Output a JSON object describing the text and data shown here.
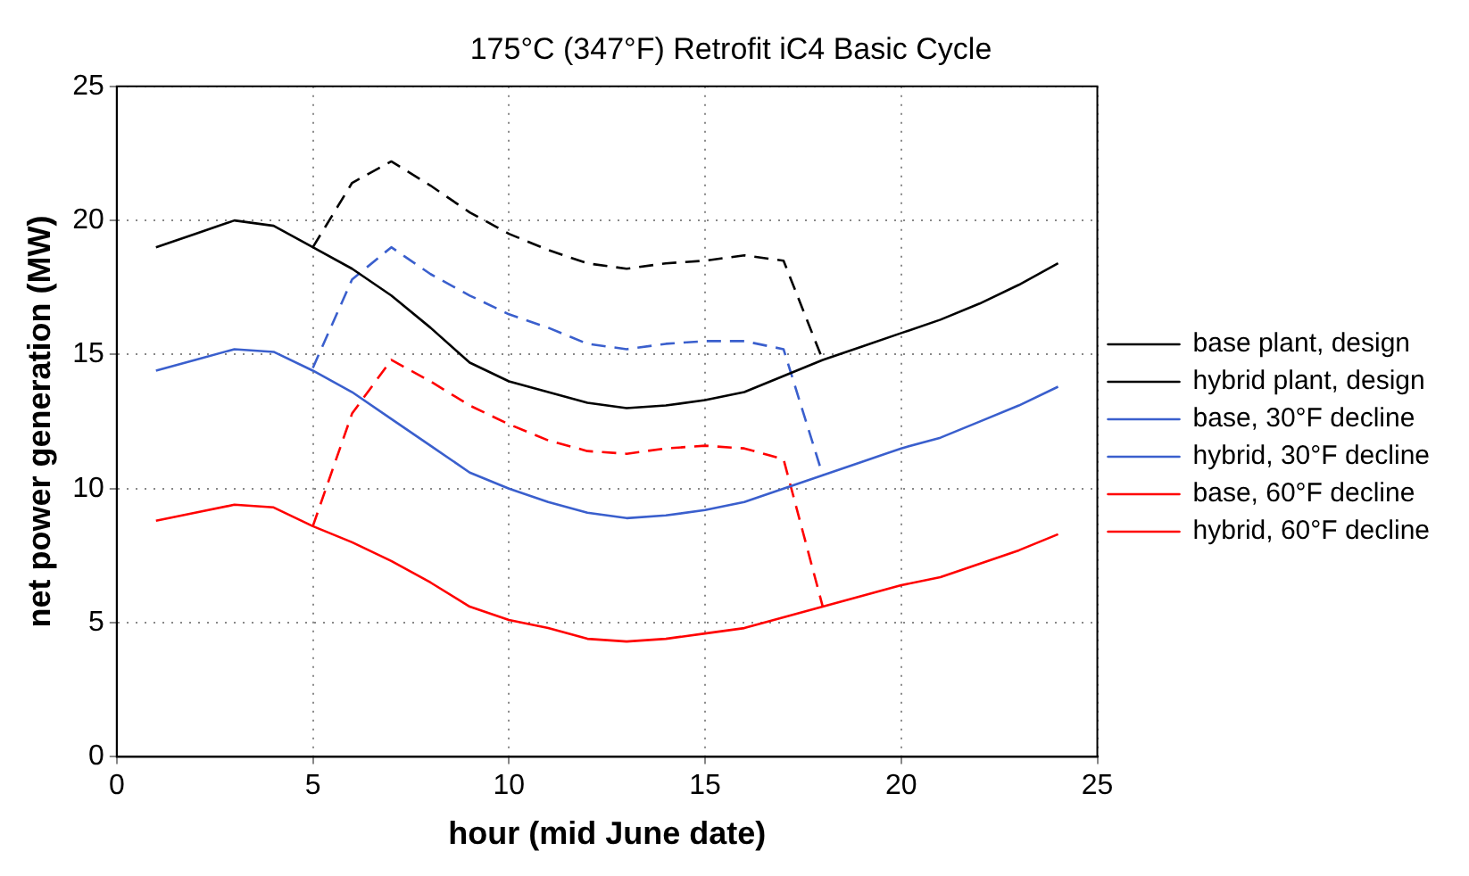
{
  "chart_data": {
    "type": "line",
    "title": "175°C (347°F) Retrofit iC4 Basic Cycle",
    "xlabel": "hour (mid June date)",
    "ylabel": "net power generation (MW)",
    "xlim": [
      0,
      25
    ],
    "xticks": [
      0,
      5,
      10,
      15,
      20,
      25
    ],
    "ylim": [
      0,
      25
    ],
    "yticks": [
      0,
      5,
      10,
      15,
      20,
      25
    ],
    "grid": true,
    "legend": "right",
    "marker": "none",
    "series": [
      {
        "name": "base plant, design",
        "color": "#000000",
        "line_style": "solid",
        "x": [
          1,
          2,
          3,
          4,
          5,
          6,
          7,
          8,
          9,
          10,
          11,
          12,
          13,
          14,
          15,
          16,
          17,
          18,
          19,
          20,
          21,
          22,
          23,
          24
        ],
        "values": [
          19.0,
          19.5,
          20.0,
          19.8,
          19.0,
          18.2,
          17.2,
          16.0,
          14.7,
          14.0,
          13.6,
          13.2,
          13.0,
          13.1,
          13.3,
          13.6,
          14.2,
          14.8,
          15.3,
          15.8,
          16.3,
          16.9,
          17.6,
          18.4
        ]
      },
      {
        "name": "hybrid plant, design",
        "color": "#000000",
        "line_style": "dashed",
        "x": [
          5,
          6,
          7,
          8,
          9,
          10,
          11,
          12,
          13,
          14,
          15,
          16,
          17,
          18
        ],
        "values": [
          19.0,
          21.4,
          22.2,
          21.3,
          20.3,
          19.5,
          18.9,
          18.4,
          18.2,
          18.4,
          18.5,
          18.7,
          18.5,
          14.8
        ]
      },
      {
        "name": "base, 30°F decline",
        "color": "#3a5fcd",
        "line_style": "solid",
        "x": [
          1,
          2,
          3,
          4,
          5,
          6,
          7,
          8,
          9,
          10,
          11,
          12,
          13,
          14,
          15,
          16,
          17,
          18,
          19,
          20,
          21,
          22,
          23,
          24
        ],
        "values": [
          14.4,
          14.8,
          15.2,
          15.1,
          14.4,
          13.6,
          12.6,
          11.6,
          10.6,
          10.0,
          9.5,
          9.1,
          8.9,
          9.0,
          9.2,
          9.5,
          10.0,
          10.5,
          11.0,
          11.5,
          11.9,
          12.5,
          13.1,
          13.8
        ]
      },
      {
        "name": "hybrid, 30°F decline",
        "color": "#3a5fcd",
        "line_style": "dashed",
        "x": [
          5,
          6,
          7,
          8,
          9,
          10,
          11,
          12,
          13,
          14,
          15,
          16,
          17,
          18
        ],
        "values": [
          14.5,
          17.8,
          19.0,
          18.0,
          17.2,
          16.5,
          16.0,
          15.4,
          15.2,
          15.4,
          15.5,
          15.5,
          15.2,
          10.5
        ]
      },
      {
        "name": "base, 60°F decline",
        "color": "#ff0000",
        "line_style": "solid",
        "x": [
          1,
          2,
          3,
          4,
          5,
          6,
          7,
          8,
          9,
          10,
          11,
          12,
          13,
          14,
          15,
          16,
          17,
          18,
          19,
          20,
          21,
          22,
          23,
          24
        ],
        "values": [
          8.8,
          9.1,
          9.4,
          9.3,
          8.6,
          8.0,
          7.3,
          6.5,
          5.6,
          5.1,
          4.8,
          4.4,
          4.3,
          4.4,
          4.6,
          4.8,
          5.2,
          5.6,
          6.0,
          6.4,
          6.7,
          7.2,
          7.7,
          8.3
        ]
      },
      {
        "name": "hybrid, 60°F decline",
        "color": "#ff0000",
        "line_style": "dashed",
        "x": [
          5,
          6,
          7,
          8,
          9,
          10,
          11,
          12,
          13,
          14,
          15,
          16,
          17,
          18
        ],
        "values": [
          8.6,
          12.8,
          14.8,
          14.0,
          13.1,
          12.4,
          11.8,
          11.4,
          11.3,
          11.5,
          11.6,
          11.5,
          11.1,
          5.6
        ]
      }
    ]
  }
}
